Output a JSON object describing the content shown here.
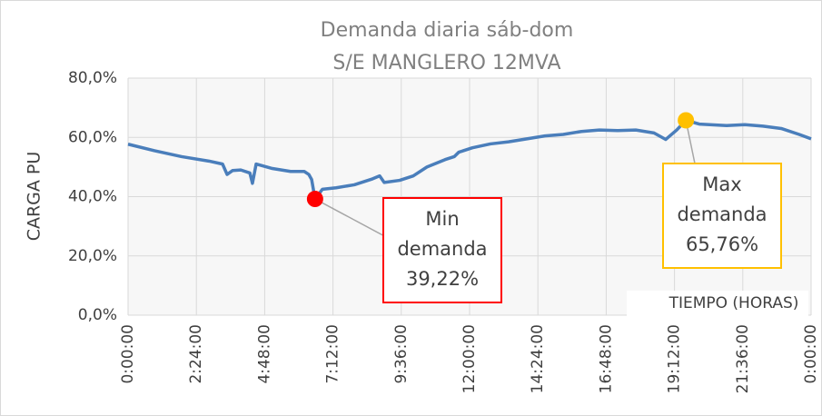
{
  "chart_data": {
    "type": "line",
    "title": [
      "Demanda diaria sáb-dom",
      "S/E MANGLERO 12MVA"
    ],
    "y_label": "CARGA PU",
    "x_label": "TIEMPO (HORAS)",
    "x": [
      0,
      0.93,
      1.88,
      2.84,
      3.32,
      3.48,
      3.67,
      3.96,
      4.28,
      4.37,
      4.5,
      5.07,
      5.71,
      6.19,
      6.35,
      6.45,
      6.57,
      6.83,
      7.31,
      7.95,
      8.59,
      8.84,
      9.0,
      9.54,
      10.02,
      10.5,
      11.14,
      11.46,
      11.62,
      12.1,
      12.73,
      13.37,
      14.01,
      14.65,
      15.29,
      15.93,
      16.56,
      17.2,
      17.84,
      18.48,
      18.89,
      19.28,
      19.6,
      20.07,
      21.03,
      21.67,
      22.31,
      22.95,
      23.58,
      24
    ],
    "series": [
      {
        "name": "CARGA PU",
        "color": "#4a7ebb",
        "values": [
          57.7,
          55.5,
          53.5,
          52,
          51,
          47.5,
          48.8,
          49,
          48,
          44.5,
          51,
          49.5,
          48.5,
          48.5,
          47.5,
          45.8,
          39.22,
          42.5,
          43,
          44,
          46,
          47,
          44.8,
          45.5,
          47,
          50,
          52.5,
          53.5,
          55,
          56.5,
          57.8,
          58.5,
          59.5,
          60.5,
          61,
          62,
          62.5,
          62.3,
          62.5,
          61.5,
          59.3,
          62.5,
          65.76,
          64.5,
          64,
          64.3,
          63.8,
          63,
          61,
          59.5
        ]
      }
    ],
    "xlim": [
      0,
      24
    ],
    "xticks": [
      {
        "value": 0,
        "label": "0:00:00"
      },
      {
        "value": 2.4,
        "label": "2:24:00"
      },
      {
        "value": 4.8,
        "label": "4:48:00"
      },
      {
        "value": 7.2,
        "label": "7:12:00"
      },
      {
        "value": 9.6,
        "label": "9:36:00"
      },
      {
        "value": 12,
        "label": "12:00:00"
      },
      {
        "value": 14.4,
        "label": "14:24:00"
      },
      {
        "value": 16.8,
        "label": "16:48:00"
      },
      {
        "value": 19.2,
        "label": "19:12:00"
      },
      {
        "value": 21.6,
        "label": "21:36:00"
      },
      {
        "value": 24,
        "label": "0:00:00"
      }
    ],
    "ylim": [
      0,
      80
    ],
    "yticks": [
      {
        "value": 0,
        "label": "0,0%"
      },
      {
        "value": 20,
        "label": "20,0%"
      },
      {
        "value": 40,
        "label": "40,0%"
      },
      {
        "value": 60,
        "label": "60,0%"
      },
      {
        "value": 80,
        "label": "80,0%"
      }
    ],
    "grid": true,
    "annotations": [
      {
        "lines": [
          "Min",
          "demanda",
          "39,22%"
        ],
        "x": 6.57,
        "y": 39.22,
        "color": "#ff0000"
      },
      {
        "lines": [
          "Max",
          "demanda",
          "65,76%"
        ],
        "x": 19.6,
        "y": 65.76,
        "color": "#ffc000"
      }
    ]
  }
}
